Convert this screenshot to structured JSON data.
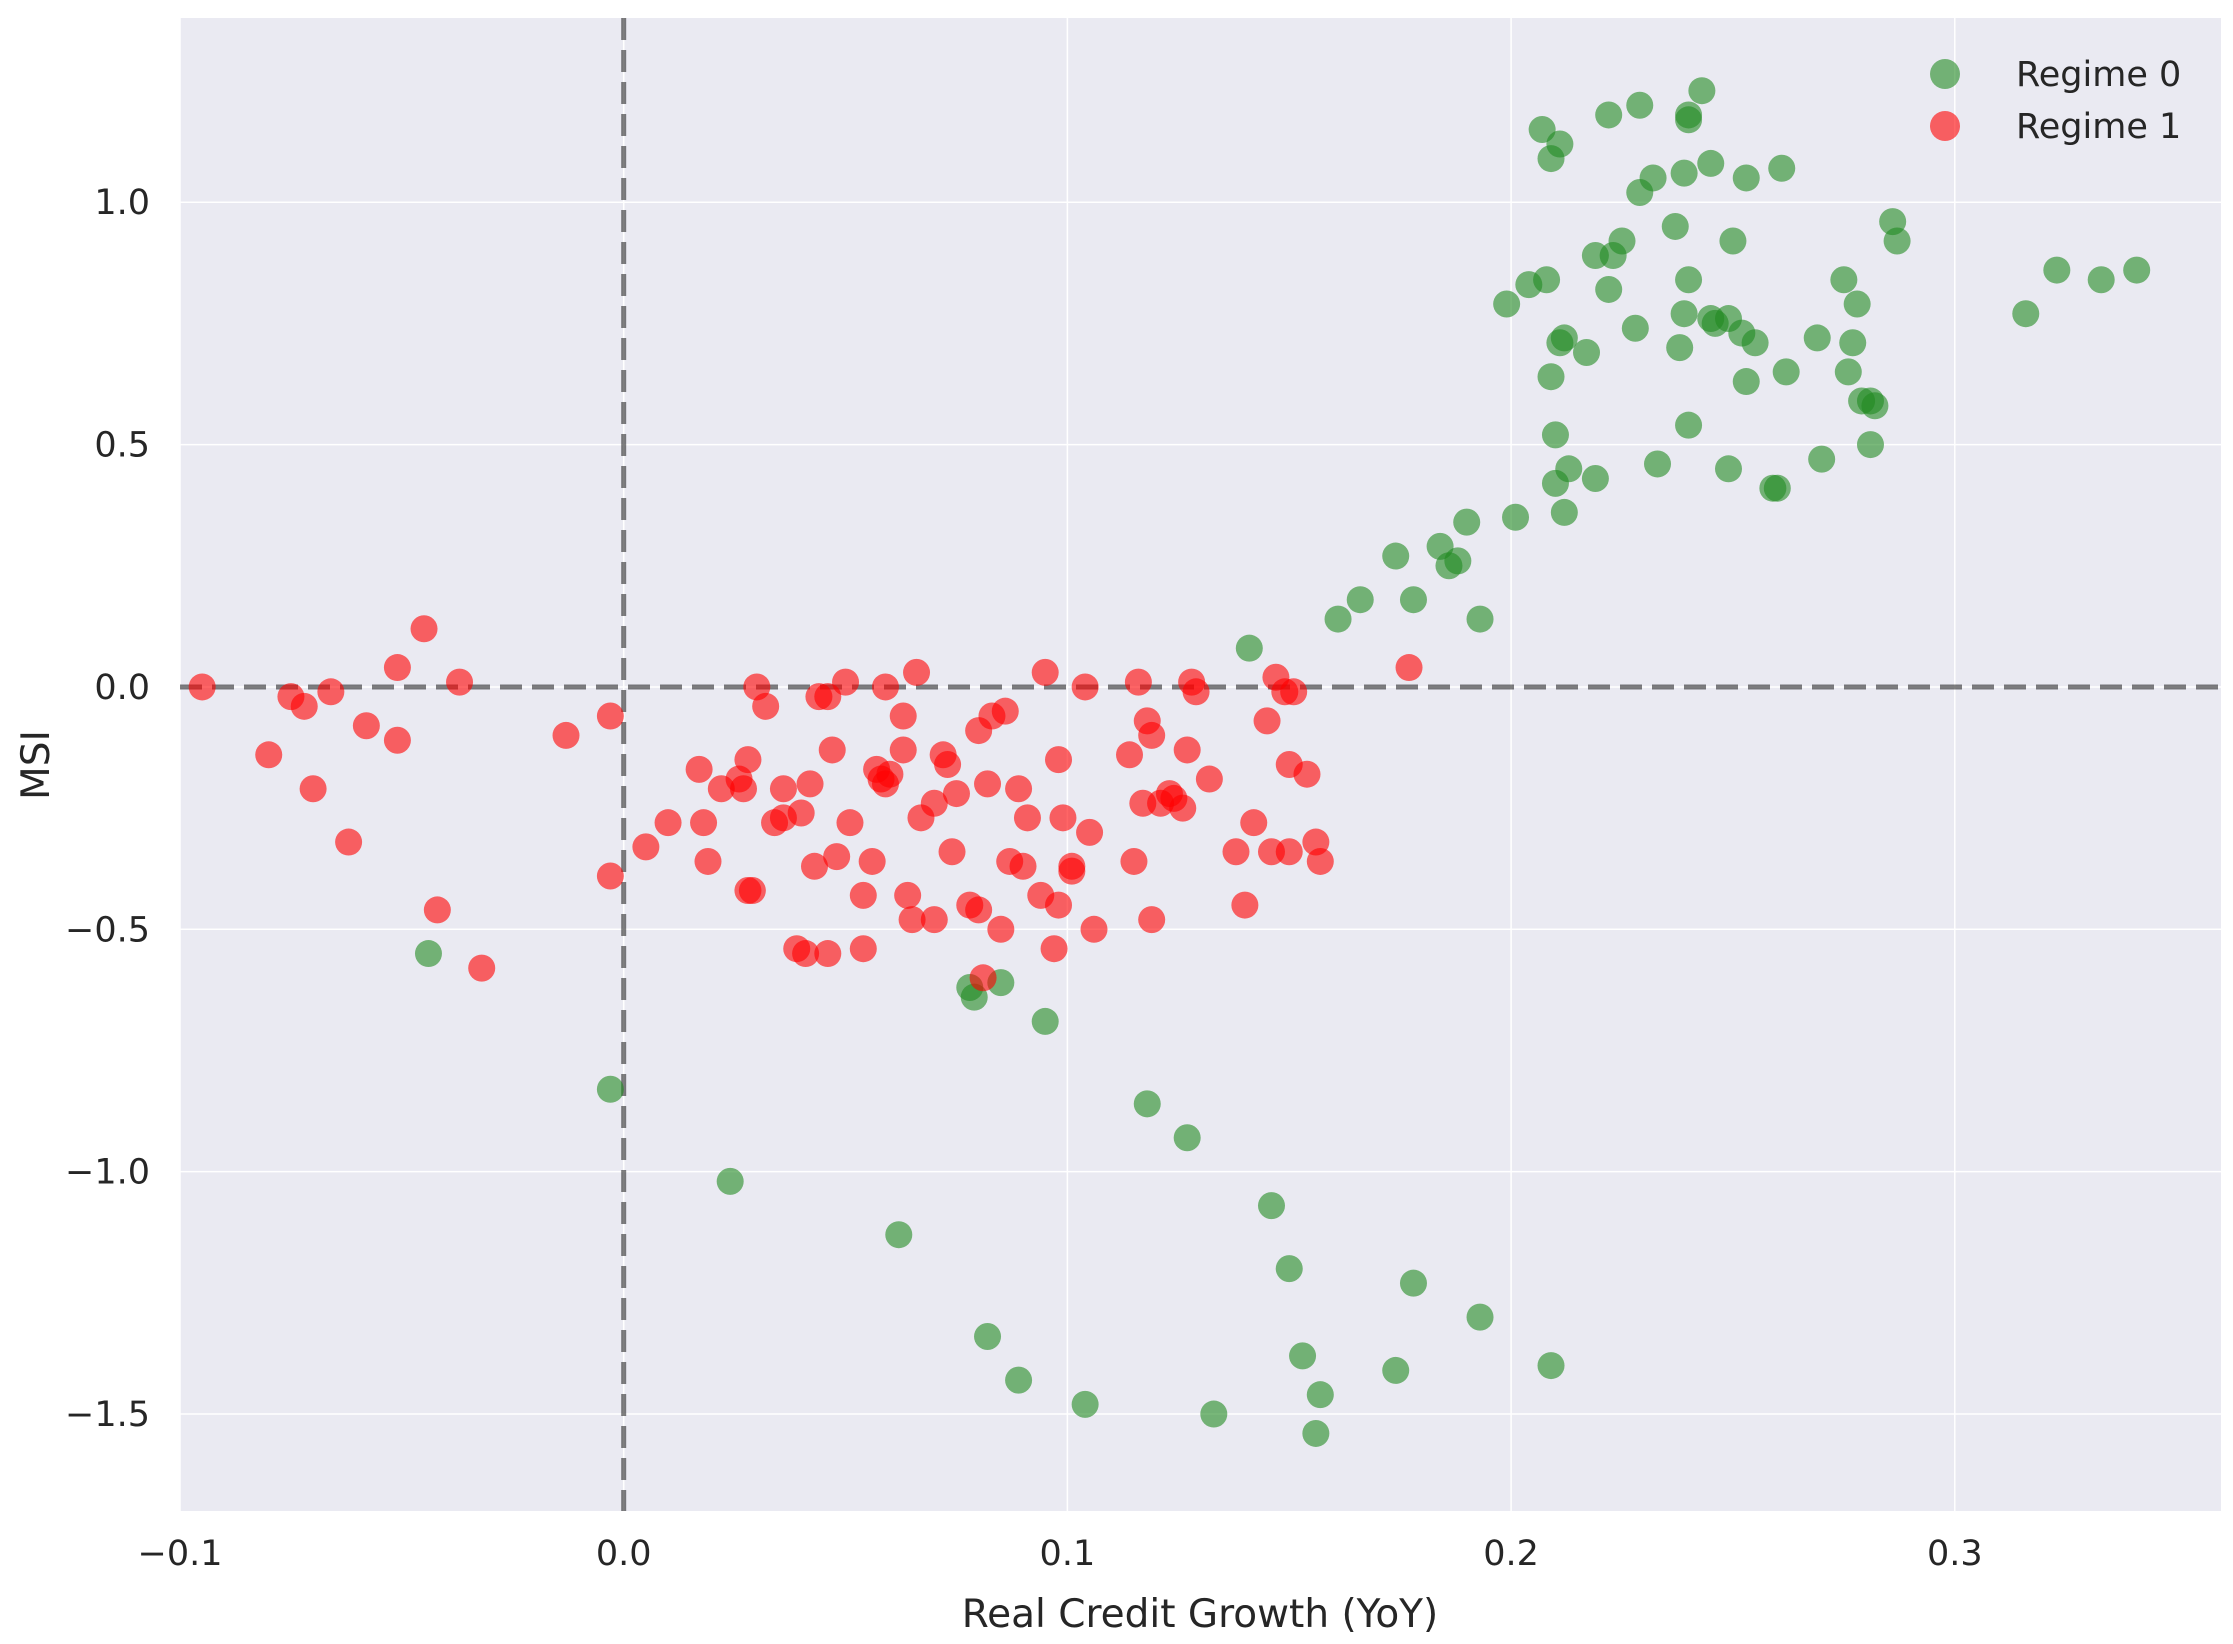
{
  "chart_data": {
    "type": "scatter",
    "title": "",
    "xlabel": "Real Credit Growth (YoY)",
    "ylabel": "MSI",
    "xlim": [
      -0.1,
      0.36
    ],
    "ylim": [
      -1.7,
      1.38
    ],
    "x_ticks": [
      -0.1,
      0.0,
      0.1,
      0.2,
      0.3
    ],
    "x_tick_labels": [
      "−0.1",
      "0.0",
      "0.1",
      "0.2",
      "0.3"
    ],
    "y_ticks": [
      -1.5,
      -1.0,
      -0.5,
      0.0,
      0.5,
      1.0
    ],
    "y_tick_labels": [
      "−1.5",
      "−1.0",
      "−0.5",
      "0.0",
      "0.5",
      "1.0"
    ],
    "grid": true,
    "reference_lines": {
      "x": 0.0,
      "y": 0.0
    },
    "legend": {
      "position": "top-right"
    },
    "series": [
      {
        "name": "Regime 0",
        "color": "#228B22",
        "points": [
          [
            0.207,
            1.15
          ],
          [
            0.209,
            1.09
          ],
          [
            0.211,
            1.12
          ],
          [
            0.222,
            1.18
          ],
          [
            0.229,
            1.2
          ],
          [
            0.24,
            1.17
          ],
          [
            0.24,
            1.18
          ],
          [
            0.243,
            1.23
          ],
          [
            0.232,
            1.05
          ],
          [
            0.239,
            1.06
          ],
          [
            0.245,
            1.08
          ],
          [
            0.253,
            1.05
          ],
          [
            0.261,
            1.07
          ],
          [
            0.229,
            1.02
          ],
          [
            0.225,
            0.92
          ],
          [
            0.223,
            0.89
          ],
          [
            0.219,
            0.89
          ],
          [
            0.237,
            0.95
          ],
          [
            0.25,
            0.92
          ],
          [
            0.286,
            0.96
          ],
          [
            0.287,
            0.92
          ],
          [
            0.204,
            0.83
          ],
          [
            0.208,
            0.84
          ],
          [
            0.222,
            0.82
          ],
          [
            0.24,
            0.84
          ],
          [
            0.275,
            0.84
          ],
          [
            0.199,
            0.79
          ],
          [
            0.278,
            0.79
          ],
          [
            0.211,
            0.71
          ],
          [
            0.212,
            0.72
          ],
          [
            0.217,
            0.69
          ],
          [
            0.228,
            0.74
          ],
          [
            0.238,
            0.7
          ],
          [
            0.239,
            0.77
          ],
          [
            0.245,
            0.76
          ],
          [
            0.246,
            0.75
          ],
          [
            0.249,
            0.76
          ],
          [
            0.252,
            0.73
          ],
          [
            0.255,
            0.71
          ],
          [
            0.269,
            0.72
          ],
          [
            0.277,
            0.71
          ],
          [
            0.209,
            0.64
          ],
          [
            0.253,
            0.63
          ],
          [
            0.262,
            0.65
          ],
          [
            0.276,
            0.65
          ],
          [
            0.279,
            0.59
          ],
          [
            0.281,
            0.59
          ],
          [
            0.282,
            0.58
          ],
          [
            0.21,
            0.52
          ],
          [
            0.24,
            0.54
          ],
          [
            0.281,
            0.5
          ],
          [
            0.27,
            0.47
          ],
          [
            0.233,
            0.46
          ],
          [
            0.249,
            0.45
          ],
          [
            0.213,
            0.45
          ],
          [
            0.21,
            0.42
          ],
          [
            0.219,
            0.43
          ],
          [
            0.259,
            0.41
          ],
          [
            0.26,
            0.41
          ],
          [
            0.212,
            0.36
          ],
          [
            0.201,
            0.35
          ],
          [
            0.19,
            0.34
          ],
          [
            0.174,
            0.27
          ],
          [
            0.184,
            0.29
          ],
          [
            0.188,
            0.26
          ],
          [
            0.186,
            0.25
          ],
          [
            0.166,
            0.18
          ],
          [
            0.178,
            0.18
          ],
          [
            0.161,
            0.14
          ],
          [
            0.193,
            0.14
          ],
          [
            0.141,
            0.08
          ],
          [
            0.316,
            0.77
          ],
          [
            0.323,
            0.86
          ],
          [
            0.333,
            0.84
          ],
          [
            0.341,
            0.86
          ],
          [
            -0.044,
            -0.55
          ],
          [
            -0.003,
            -0.83
          ],
          [
            0.078,
            -0.62
          ],
          [
            0.079,
            -0.64
          ],
          [
            0.085,
            -0.61
          ],
          [
            0.095,
            -0.69
          ],
          [
            0.024,
            -1.02
          ],
          [
            0.062,
            -1.13
          ],
          [
            0.118,
            -0.86
          ],
          [
            0.127,
            -0.93
          ],
          [
            0.146,
            -1.07
          ],
          [
            0.15,
            -1.2
          ],
          [
            0.178,
            -1.23
          ],
          [
            0.193,
            -1.3
          ],
          [
            0.082,
            -1.34
          ],
          [
            0.089,
            -1.43
          ],
          [
            0.104,
            -1.48
          ],
          [
            0.133,
            -1.5
          ],
          [
            0.153,
            -1.38
          ],
          [
            0.157,
            -1.46
          ],
          [
            0.156,
            -1.54
          ],
          [
            0.174,
            -1.41
          ],
          [
            0.209,
            -1.4
          ]
        ]
      },
      {
        "name": "Regime 1",
        "color": "#FF0000",
        "points": [
          [
            -0.095,
            0.0
          ],
          [
            -0.08,
            -0.14
          ],
          [
            -0.075,
            -0.02
          ],
          [
            -0.072,
            -0.04
          ],
          [
            -0.07,
            -0.21
          ],
          [
            -0.066,
            -0.01
          ],
          [
            -0.062,
            -0.32
          ],
          [
            -0.058,
            -0.08
          ],
          [
            -0.051,
            0.04
          ],
          [
            -0.051,
            -0.11
          ],
          [
            -0.045,
            0.12
          ],
          [
            -0.042,
            -0.46
          ],
          [
            -0.037,
            0.01
          ],
          [
            -0.032,
            -0.58
          ],
          [
            -0.013,
            -0.1
          ],
          [
            -0.003,
            -0.06
          ],
          [
            -0.003,
            -0.39
          ],
          [
            0.005,
            -0.33
          ],
          [
            0.01,
            -0.28
          ],
          [
            0.017,
            -0.17
          ],
          [
            0.018,
            -0.28
          ],
          [
            0.019,
            -0.36
          ],
          [
            0.022,
            -0.21
          ],
          [
            0.026,
            -0.19
          ],
          [
            0.027,
            -0.21
          ],
          [
            0.028,
            -0.15
          ],
          [
            0.028,
            -0.42
          ],
          [
            0.029,
            -0.42
          ],
          [
            0.03,
            0.0
          ],
          [
            0.032,
            -0.04
          ],
          [
            0.034,
            -0.28
          ],
          [
            0.036,
            -0.21
          ],
          [
            0.036,
            -0.27
          ],
          [
            0.039,
            -0.54
          ],
          [
            0.04,
            -0.26
          ],
          [
            0.041,
            -0.55
          ],
          [
            0.042,
            -0.2
          ],
          [
            0.043,
            -0.37
          ],
          [
            0.044,
            -0.02
          ],
          [
            0.046,
            -0.02
          ],
          [
            0.046,
            -0.55
          ],
          [
            0.047,
            -0.13
          ],
          [
            0.048,
            -0.35
          ],
          [
            0.05,
            0.01
          ],
          [
            0.051,
            -0.28
          ],
          [
            0.054,
            -0.43
          ],
          [
            0.054,
            -0.54
          ],
          [
            0.056,
            -0.36
          ],
          [
            0.057,
            -0.17
          ],
          [
            0.058,
            -0.19
          ],
          [
            0.059,
            -0.2
          ],
          [
            0.06,
            -0.18
          ],
          [
            0.059,
            0.0
          ],
          [
            0.063,
            -0.13
          ],
          [
            0.063,
            -0.06
          ],
          [
            0.064,
            -0.43
          ],
          [
            0.065,
            -0.48
          ],
          [
            0.066,
            0.03
          ],
          [
            0.067,
            -0.27
          ],
          [
            0.07,
            -0.48
          ],
          [
            0.07,
            -0.24
          ],
          [
            0.072,
            -0.14
          ],
          [
            0.073,
            -0.16
          ],
          [
            0.074,
            -0.34
          ],
          [
            0.075,
            -0.22
          ],
          [
            0.078,
            -0.45
          ],
          [
            0.08,
            -0.46
          ],
          [
            0.08,
            -0.09
          ],
          [
            0.082,
            -0.2
          ],
          [
            0.083,
            -0.06
          ],
          [
            0.085,
            -0.5
          ],
          [
            0.086,
            -0.05
          ],
          [
            0.087,
            -0.36
          ],
          [
            0.089,
            -0.21
          ],
          [
            0.09,
            -0.37
          ],
          [
            0.091,
            -0.27
          ],
          [
            0.094,
            -0.43
          ],
          [
            0.095,
            0.03
          ],
          [
            0.097,
            -0.54
          ],
          [
            0.098,
            -0.15
          ],
          [
            0.098,
            -0.45
          ],
          [
            0.099,
            -0.27
          ],
          [
            0.101,
            -0.38
          ],
          [
            0.101,
            -0.37
          ],
          [
            0.104,
            0.0
          ],
          [
            0.105,
            -0.3
          ],
          [
            0.106,
            -0.5
          ],
          [
            0.114,
            -0.14
          ],
          [
            0.115,
            -0.36
          ],
          [
            0.116,
            0.01
          ],
          [
            0.117,
            -0.24
          ],
          [
            0.118,
            -0.07
          ],
          [
            0.119,
            -0.1
          ],
          [
            0.119,
            -0.48
          ],
          [
            0.121,
            -0.24
          ],
          [
            0.123,
            -0.22
          ],
          [
            0.124,
            -0.23
          ],
          [
            0.126,
            -0.25
          ],
          [
            0.127,
            -0.13
          ],
          [
            0.128,
            0.01
          ],
          [
            0.129,
            -0.01
          ],
          [
            0.132,
            -0.19
          ],
          [
            0.138,
            -0.34
          ],
          [
            0.14,
            -0.45
          ],
          [
            0.142,
            -0.28
          ],
          [
            0.145,
            -0.07
          ],
          [
            0.146,
            -0.34
          ],
          [
            0.147,
            0.02
          ],
          [
            0.149,
            -0.01
          ],
          [
            0.15,
            -0.16
          ],
          [
            0.15,
            -0.34
          ],
          [
            0.151,
            -0.01
          ],
          [
            0.154,
            -0.18
          ],
          [
            0.156,
            -0.32
          ],
          [
            0.157,
            -0.36
          ],
          [
            0.081,
            -0.6
          ],
          [
            0.177,
            0.04
          ]
        ]
      }
    ]
  }
}
